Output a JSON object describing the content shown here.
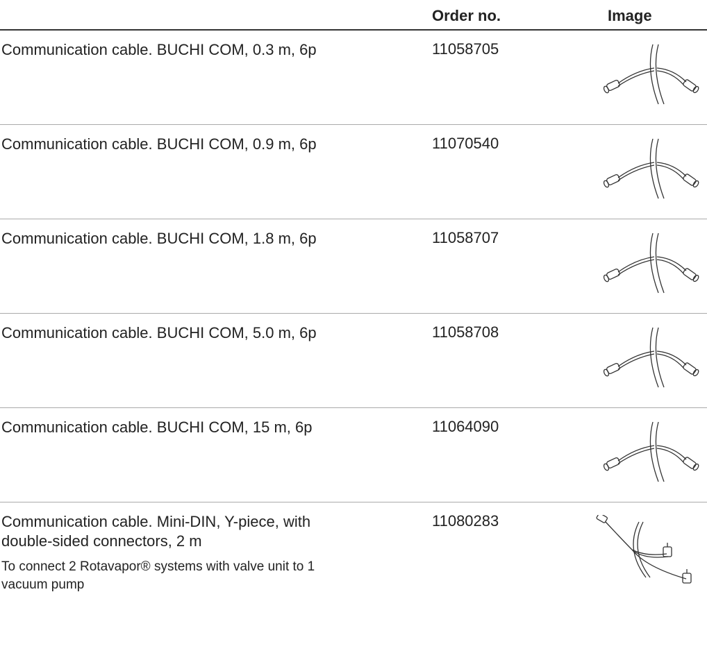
{
  "header": {
    "order_no": "Order no.",
    "image": "Image"
  },
  "rows": [
    {
      "description": "Communication cable. BUCHI COM, 0.3 m, 6p",
      "order_no": "11058705"
    },
    {
      "description": "Communication cable. BUCHI COM, 0.9 m, 6p",
      "order_no": "11070540"
    },
    {
      "description": "Communication cable. BUCHI COM, 1.8 m, 6p",
      "order_no": "11058707"
    },
    {
      "description": "Communication cable. BUCHI COM, 5.0 m, 6p",
      "order_no": "11058708"
    },
    {
      "description": "Communication cable. BUCHI COM, 15 m, 6p",
      "order_no": "11064090"
    },
    {
      "description": "Communication cable. Mini-DIN, Y-piece, with double-sided connectors, 2 m",
      "order_no": "11080283",
      "note": "To connect 2 Rotavapor® systems with valve unit to 1 vacuum pump"
    }
  ]
}
